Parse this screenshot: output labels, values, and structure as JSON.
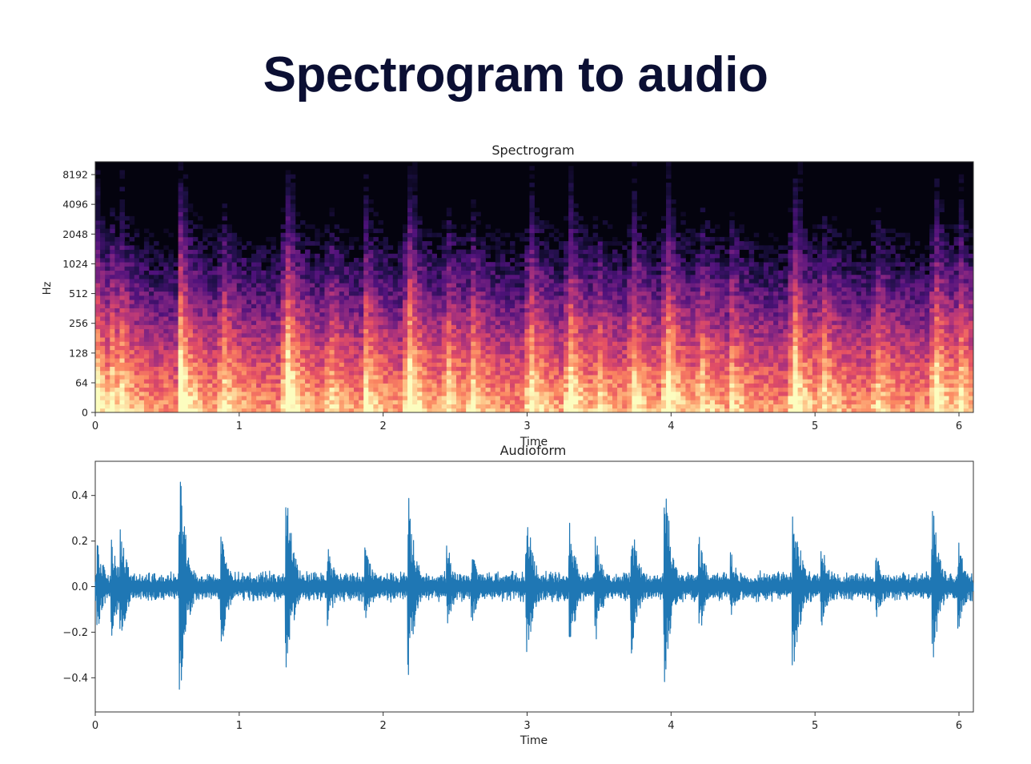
{
  "page": {
    "title": "Spectrogram to audio"
  },
  "chart_data": [
    {
      "type": "heatmap",
      "title": "Spectrogram",
      "xlabel": "Time",
      "ylabel": "Hz",
      "y_scale": "symlog",
      "xlim": [
        0,
        6.1
      ],
      "x_ticks": [
        0,
        1,
        2,
        3,
        4,
        5,
        6
      ],
      "y_ticks": [
        0,
        64,
        128,
        256,
        512,
        1024,
        2048,
        4096,
        8192
      ],
      "colormap": "magma",
      "onset_times": [
        0.0,
        0.1,
        0.18,
        0.59,
        0.88,
        1.33,
        1.62,
        1.88,
        2.18,
        2.45,
        2.62,
        3.0,
        3.3,
        3.48,
        3.73,
        3.96,
        4.2,
        4.42,
        4.85,
        5.05,
        5.43,
        5.82,
        6.0
      ],
      "onset_strengths": [
        0.7,
        0.6,
        0.55,
        0.9,
        0.6,
        0.9,
        0.5,
        0.6,
        0.85,
        0.5,
        0.5,
        0.85,
        0.7,
        0.5,
        0.65,
        0.9,
        0.55,
        0.45,
        0.85,
        0.55,
        0.45,
        0.85,
        0.6
      ]
    },
    {
      "type": "line",
      "title": "Audioform",
      "xlabel": "Time",
      "ylabel": "",
      "xlim": [
        0,
        6.1
      ],
      "ylim": [
        -0.55,
        0.55
      ],
      "x_ticks": [
        0,
        1,
        2,
        3,
        4,
        5,
        6
      ],
      "y_ticks": [
        0.4,
        0.2,
        0.0,
        -0.2,
        -0.4
      ],
      "y_tick_labels": [
        "0.4",
        "0.2",
        "0.0",
        "−0.2",
        "−0.4"
      ],
      "color": "#1f77b4",
      "peaks": [
        {
          "t": 0.02,
          "a": 0.2
        },
        {
          "t": 0.12,
          "a": 0.22
        },
        {
          "t": 0.18,
          "a": 0.27
        },
        {
          "t": 0.59,
          "a": 0.5
        },
        {
          "t": 0.88,
          "a": 0.27
        },
        {
          "t": 1.33,
          "a": 0.44
        },
        {
          "t": 1.62,
          "a": 0.18
        },
        {
          "t": 1.88,
          "a": 0.19
        },
        {
          "t": 2.18,
          "a": 0.39
        },
        {
          "t": 2.45,
          "a": 0.18
        },
        {
          "t": 2.62,
          "a": 0.16
        },
        {
          "t": 3.0,
          "a": 0.35
        },
        {
          "t": 3.3,
          "a": 0.3
        },
        {
          "t": 3.48,
          "a": 0.24
        },
        {
          "t": 3.73,
          "a": 0.3
        },
        {
          "t": 3.96,
          "a": 0.49
        },
        {
          "t": 4.2,
          "a": 0.22
        },
        {
          "t": 4.42,
          "a": 0.15
        },
        {
          "t": 4.85,
          "a": 0.44
        },
        {
          "t": 5.05,
          "a": 0.19
        },
        {
          "t": 5.43,
          "a": 0.14
        },
        {
          "t": 5.82,
          "a": 0.38
        },
        {
          "t": 6.0,
          "a": 0.2
        }
      ]
    }
  ]
}
